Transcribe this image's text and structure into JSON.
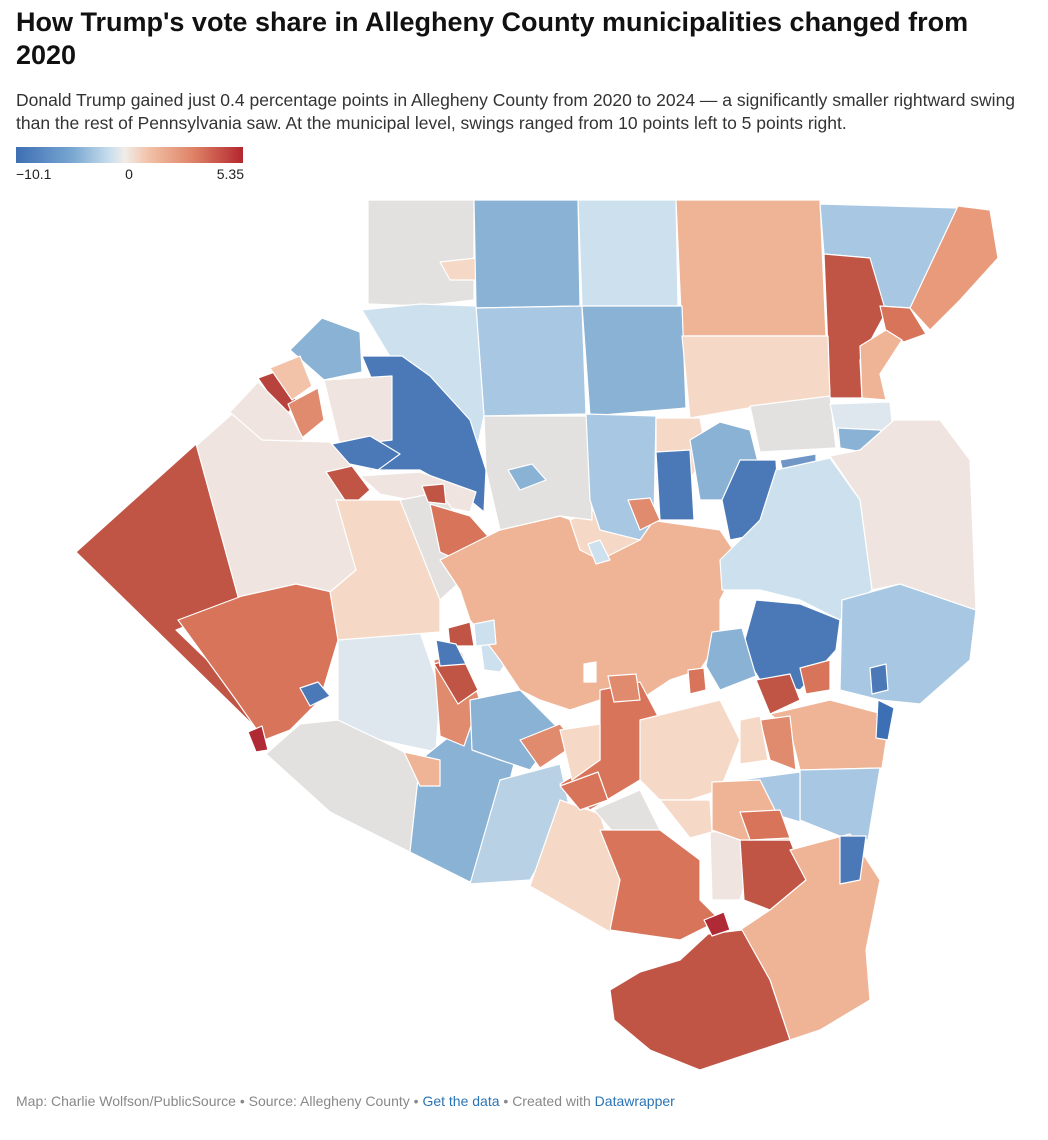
{
  "title": "How Trump's vote share in Allegheny County municipalities changed from 2020",
  "description": "Donald Trump gained just 0.4 percentage points in Allegheny County from 2020 to 2024 — a significantly smaller rightward swing than the rest of Pennsylvania saw. At the municipal level, swings ranged from 10 points left to 5 points right.",
  "legend": {
    "min_label": "−10.1",
    "mid_label": "0",
    "max_label": "5.35",
    "min_value": -10.1,
    "max_value": 5.35,
    "colors": [
      "#3d6fb4",
      "#79a7d1",
      "#cde0ee",
      "#f1ece8",
      "#f2c3a9",
      "#df8367",
      "#b4262e"
    ]
  },
  "footer": {
    "map_credit": "Map: Charlie Wolfson/PublicSource",
    "source": "Source: Allegheny County",
    "data_link": "Get the data",
    "created_with": "Created with",
    "tool": "Datawrapper",
    "separator": " • "
  }
}
